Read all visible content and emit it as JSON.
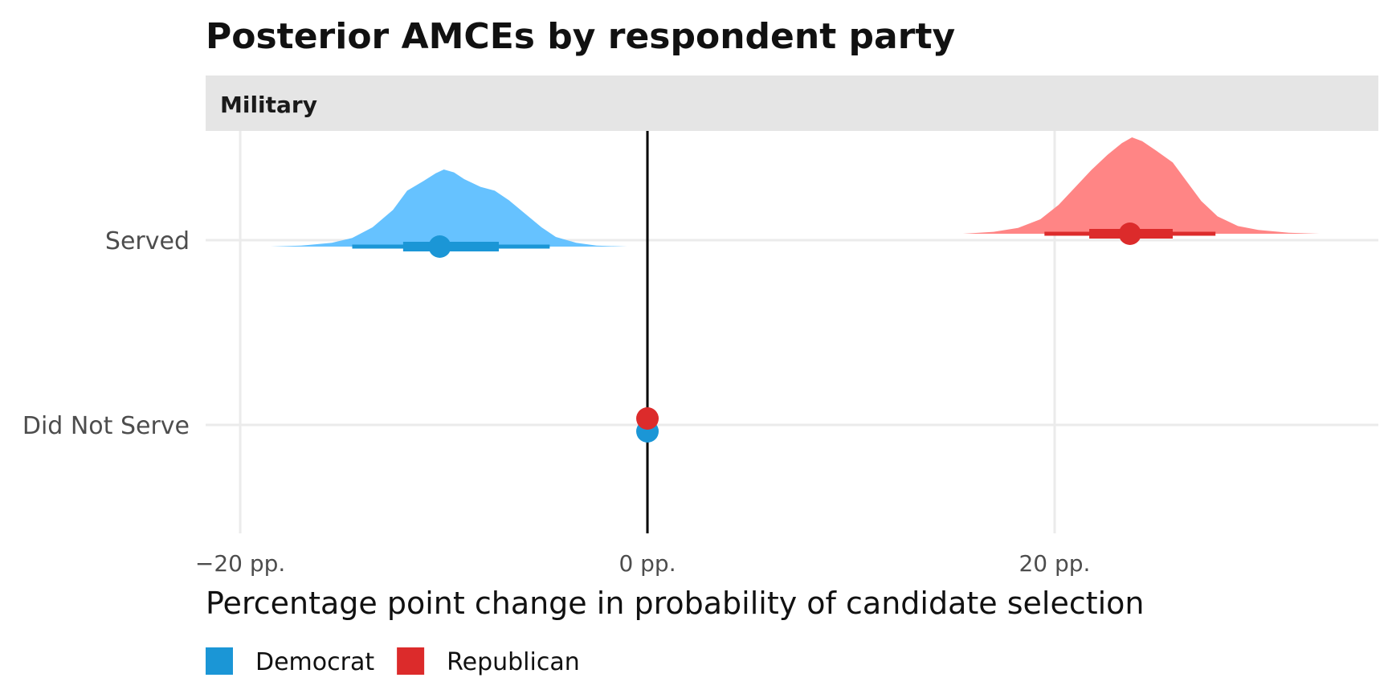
{
  "chart_data": {
    "type": "halfeye",
    "title": "Posterior AMCEs by respondent party",
    "facet": "Military",
    "xlabel": "Percentage point change in probability of candidate selection",
    "ylabel": "",
    "xlim": [
      -21.7,
      35.9
    ],
    "x_ticks": [
      -20,
      0,
      20
    ],
    "x_tick_labels": [
      "−20 pp.",
      "0 pp.",
      "20 pp."
    ],
    "categories": [
      "Served",
      "Did Not Serve"
    ],
    "reference_line": 0,
    "grid": true,
    "legend_position": "bottom-left",
    "colors": {
      "Democrat": {
        "point": "#1b96d6",
        "density": "#66c2ff"
      },
      "Republican": {
        "point": "#dc2b2b",
        "density": "#ff8585"
      },
      "strip_bg": "#e5e5e5",
      "grid": "#ebebeb",
      "reference": "#000000"
    },
    "series": [
      {
        "name": "Democrat",
        "points": [
          {
            "category": "Served",
            "median": -10.2,
            "interval_66": [
              -12.0,
              -7.3
            ],
            "interval_95": [
              -14.5,
              -4.8
            ],
            "density": {
              "x": [
                -18.5,
                -17.0,
                -15.5,
                -14.5,
                -13.5,
                -12.5,
                -11.8,
                -11.0,
                -10.4,
                -10.0,
                -9.5,
                -9.0,
                -8.2,
                -7.5,
                -6.8,
                -6.0,
                -5.2,
                -4.5,
                -3.5,
                -2.5,
                -1.0
              ],
              "y": [
                0.0,
                0.01,
                0.04,
                0.09,
                0.2,
                0.38,
                0.58,
                0.68,
                0.76,
                0.8,
                0.77,
                0.7,
                0.62,
                0.58,
                0.48,
                0.34,
                0.2,
                0.1,
                0.04,
                0.01,
                0.0
              ]
            }
          },
          {
            "category": "Did Not Serve",
            "median": 0,
            "interval_66": [
              0,
              0
            ],
            "interval_95": [
              0,
              0
            ]
          }
        ]
      },
      {
        "name": "Republican",
        "points": [
          {
            "category": "Served",
            "median": 23.7,
            "interval_66": [
              21.7,
              25.8
            ],
            "interval_95": [
              19.5,
              27.9
            ],
            "density": {
              "x": [
                15.5,
                17.0,
                18.2,
                19.3,
                20.2,
                21.0,
                21.8,
                22.6,
                23.3,
                23.8,
                24.3,
                25.0,
                25.8,
                26.5,
                27.2,
                28.0,
                29.0,
                30.0,
                31.5,
                33.0,
                34.6
              ],
              "y": [
                0.0,
                0.02,
                0.06,
                0.15,
                0.3,
                0.48,
                0.66,
                0.82,
                0.94,
                1.0,
                0.96,
                0.86,
                0.74,
                0.54,
                0.34,
                0.18,
                0.08,
                0.04,
                0.01,
                0.0,
                0.0
              ]
            }
          },
          {
            "category": "Did Not Serve",
            "median": 0,
            "interval_66": [
              0,
              0
            ],
            "interval_95": [
              0,
              0
            ]
          }
        ]
      }
    ]
  }
}
